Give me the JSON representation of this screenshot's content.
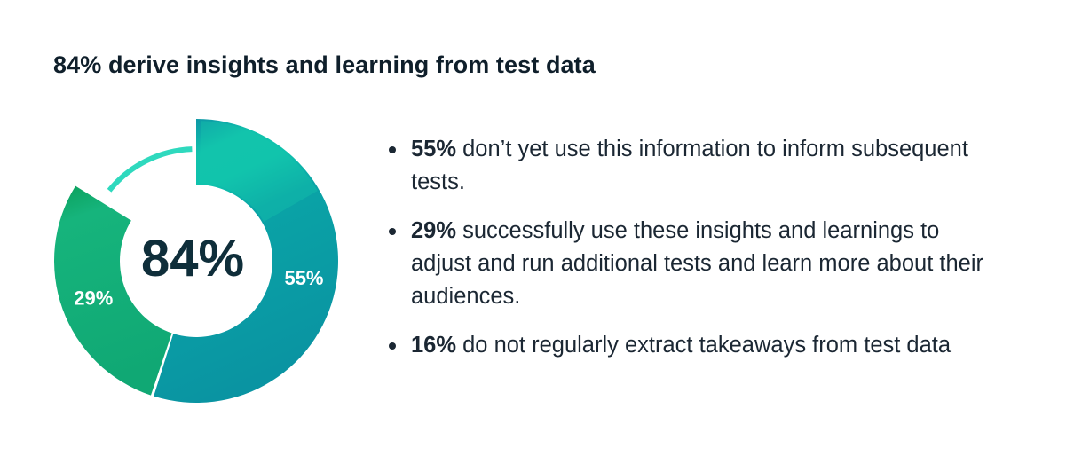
{
  "title": "84% derive insights and learning from test data",
  "center_label": "84%",
  "bullets": [
    {
      "pct": "55%",
      "text": "don’t yet use this information to inform subsequent tests."
    },
    {
      "pct": "29%",
      "text": "successfully use these insights and learnings to adjust and run additional tests and learn more about their audiences."
    },
    {
      "pct": "16%",
      "text": "do not regularly extract takeaways from test data"
    }
  ],
  "chart_data": {
    "type": "pie",
    "subtype": "donut",
    "title": "84% derive insights and learning from test data",
    "center_text": "84%",
    "slices": [
      {
        "value": 55,
        "label": "55%",
        "color": "#0a97a3",
        "shown_on_chart": true
      },
      {
        "value": 29,
        "label": "29%",
        "color": "#12b07e",
        "shown_on_chart": true
      },
      {
        "value": 16,
        "label": "",
        "color": "#2fd9be",
        "shown_on_chart": false
      }
    ],
    "colors": {
      "gradient_top": "#0a7fa0",
      "gradient_mid": "#0fc6ae",
      "slice_55": "#0a97a3",
      "slice_29": "#12b07e",
      "slice_16_outline": "#2fd9be",
      "center_text": "#0f2e3a"
    }
  }
}
